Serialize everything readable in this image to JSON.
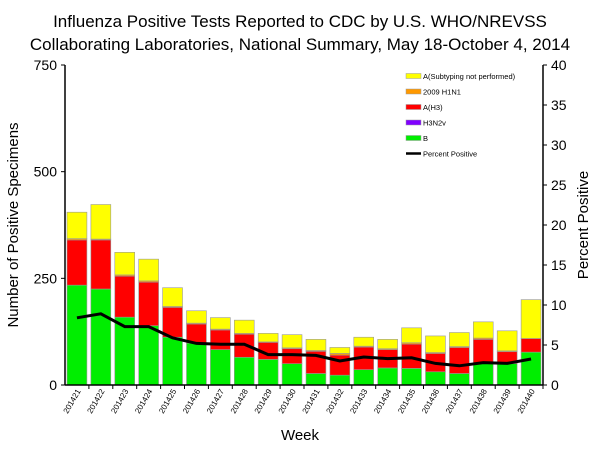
{
  "chart_data": {
    "type": "bar",
    "stacked": true,
    "title": [
      "Influenza Positive Tests Reported to CDC by U.S. WHO/NREVSS",
      "Collaborating Laboratories, National Summary, May 18-October 4, 2014"
    ],
    "xlabel": "Week",
    "ylabel": "Number of Positive Specimens",
    "y2label": "Percent Positive",
    "ylim": [
      0,
      750
    ],
    "yticks": [
      0,
      250,
      500,
      750
    ],
    "y2lim": [
      0,
      40
    ],
    "y2ticks": [
      0,
      5,
      10,
      15,
      20,
      25,
      30,
      35,
      40
    ],
    "legend_position": "top-right",
    "categories": [
      "201421",
      "201422",
      "201423",
      "201424",
      "201425",
      "201426",
      "201427",
      "201428",
      "201429",
      "201430",
      "201431",
      "201432",
      "201433",
      "201434",
      "201435",
      "201436",
      "201437",
      "201438",
      "201439",
      "201440"
    ],
    "series": [
      {
        "name": "B",
        "color": "#00ee00",
        "values": [
          234,
          225,
          159,
          139,
          112,
          98,
          83,
          65,
          60,
          50,
          27,
          23,
          36,
          40,
          39,
          31,
          27,
          51,
          50,
          77
        ]
      },
      {
        "name": "H3N2v",
        "color": "#8000ff",
        "values": [
          0,
          0,
          0,
          0,
          0,
          0,
          0,
          0,
          0,
          0,
          0,
          0,
          0,
          0,
          0,
          0,
          0,
          0,
          0,
          0
        ]
      },
      {
        "name": "A(H3)",
        "color": "#ff0000",
        "values": [
          106,
          115,
          96,
          102,
          70,
          45,
          46,
          54,
          40,
          35,
          52,
          47,
          53,
          43,
          57,
          43,
          61,
          56,
          28,
          32
        ]
      },
      {
        "name": "2009 H1N1",
        "color": "#ff9900",
        "values": [
          3,
          2,
          3,
          3,
          2,
          2,
          2,
          2,
          1,
          2,
          2,
          4,
          2,
          2,
          3,
          2,
          2,
          3,
          2,
          0
        ]
      },
      {
        "name": "A(Subtyping not performed)",
        "color": "#ffff00",
        "values": [
          62,
          81,
          53,
          51,
          44,
          29,
          27,
          31,
          20,
          31,
          26,
          14,
          21,
          22,
          35,
          39,
          33,
          38,
          47,
          91
        ]
      }
    ],
    "line": {
      "name": "Percent Positive",
      "color": "#000000",
      "values": [
        8.4,
        8.9,
        7.3,
        7.3,
        5.9,
        5.2,
        5.1,
        5.1,
        3.8,
        3.8,
        3.7,
        3.0,
        3.5,
        3.3,
        3.4,
        2.7,
        2.4,
        2.8,
        2.7,
        3.25
      ]
    }
  }
}
